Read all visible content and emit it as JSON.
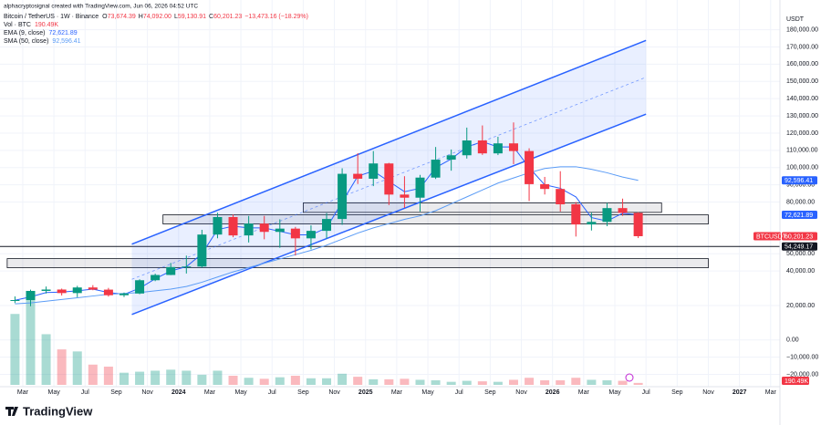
{
  "chart_data": {
    "type": "candlestick",
    "header": "alphacryptosignal created with TradingView.com, Jun 06, 2026 04:52 UTC",
    "symbol": "Bitcoin / TetherUS · 1W · Binance",
    "ohlc": [
      {
        "key": "O",
        "text": "73,674.39"
      },
      {
        "key": "H",
        "text": "74,092.00"
      },
      {
        "key": "L",
        "text": "59,130.91"
      },
      {
        "key": "C",
        "text": "60,201.23"
      }
    ],
    "change": "−13,473.16 (−18.29%)",
    "volume_legend": {
      "name": "Vol · BTC",
      "text": "190.49K"
    },
    "axis_unit": "USDT",
    "brand": "TradingView",
    "x": [
      "2023-02",
      "2023-03",
      "2023-04",
      "2023-05",
      "2023-06",
      "2023-07",
      "2023-08",
      "2023-09",
      "2023-10",
      "2023-11",
      "2023-12",
      "2024-01",
      "2024-02",
      "2024-03",
      "2024-04",
      "2024-05",
      "2024-06",
      "2024-07",
      "2024-08",
      "2024-09",
      "2024-10",
      "2024-11",
      "2024-12",
      "2025-01",
      "2025-02",
      "2025-03",
      "2025-04",
      "2025-05",
      "2025-06",
      "2025-07",
      "2025-08",
      "2025-09",
      "2025-10",
      "2025-11",
      "2025-12",
      "2026-01",
      "2026-02",
      "2026-03",
      "2026-04",
      "2026-05",
      "2026-06"
    ],
    "open": [
      23100,
      23150,
      28450,
      29250,
      27200,
      30450,
      29200,
      25950,
      26950,
      34650,
      37700,
      42300,
      42600,
      61150,
      71300,
      60650,
      67500,
      62700,
      64600,
      58950,
      63300,
      70200,
      96400,
      93550,
      102400,
      84350,
      82550,
      94200,
      104600,
      107150,
      115750,
      108250,
      114050,
      109600,
      90400,
      87600,
      78700,
      67000,
      68500,
      76500,
      73700
    ],
    "high": [
      25250,
      29200,
      31000,
      29800,
      31400,
      31800,
      30200,
      27500,
      35200,
      38450,
      44700,
      48950,
      63900,
      73800,
      72800,
      71950,
      71950,
      70000,
      65600,
      66500,
      73600,
      99600,
      108350,
      109600,
      102750,
      95000,
      95750,
      111950,
      110500,
      123200,
      124450,
      117900,
      126200,
      111200,
      94600,
      97900,
      80000,
      74000,
      79500,
      82000,
      74100
    ],
    "low": [
      21400,
      19550,
      26950,
      25800,
      24800,
      28850,
      25150,
      24900,
      26550,
      34100,
      37600,
      38550,
      41900,
      59000,
      59600,
      56550,
      58400,
      53500,
      49000,
      52550,
      58900,
      66800,
      90500,
      89250,
      78250,
      76600,
      74500,
      93400,
      98200,
      105250,
      107350,
      107250,
      102000,
      80600,
      84400,
      74500,
      60000,
      63500,
      66000,
      72000,
      59100
    ],
    "close": [
      23150,
      28450,
      29250,
      27200,
      30450,
      29200,
      25950,
      26950,
      34650,
      37700,
      42300,
      42600,
      61150,
      71300,
      60650,
      67500,
      62700,
      64600,
      58950,
      63300,
      70200,
      96400,
      93550,
      102400,
      84350,
      82550,
      94200,
      104600,
      107150,
      115750,
      108250,
      114050,
      109600,
      90400,
      87600,
      78700,
      67000,
      68500,
      76500,
      73700,
      60200
    ],
    "volume": [
      7000,
      9000,
      5000,
      3500,
      3300,
      2000,
      1800,
      1200,
      1300,
      1400,
      1500,
      1400,
      1000,
      1400,
      900,
      700,
      600,
      750,
      900,
      650,
      650,
      1100,
      800,
      550,
      550,
      600,
      500,
      450,
      300,
      400,
      350,
      300,
      500,
      700,
      450,
      450,
      700,
      500,
      450,
      400,
      190.49
    ],
    "up_color": "#089981",
    "down_color": "#f23645",
    "series": [
      {
        "name": "EMA (9, close)",
        "color": "#2962ff",
        "value_text": "72,621.89",
        "values": [
          23000,
          25000,
          27500,
          27800,
          28500,
          29500,
          27500,
          26500,
          30000,
          35500,
          40000,
          42500,
          50000,
          64000,
          66000,
          65000,
          65000,
          63000,
          61000,
          61000,
          65000,
          80000,
          95000,
          98000,
          92000,
          86000,
          88000,
          100000,
          105000,
          112000,
          115000,
          112000,
          112000,
          100000,
          90000,
          88000,
          83000,
          71000,
          69000,
          73500,
          72600
        ]
      },
      {
        "name": "SMA (50, close)",
        "color": "#5b9cf6",
        "value_text": "92,596.41",
        "values": [
          21000,
          21500,
          22500,
          23500,
          24500,
          25500,
          26500,
          27000,
          27500,
          28500,
          29500,
          31000,
          33500,
          36500,
          39500,
          42000,
          44500,
          47000,
          49500,
          52000,
          55000,
          58500,
          62000,
          65000,
          67500,
          70000,
          72000,
          75000,
          79000,
          83000,
          87000,
          91000,
          94000,
          97000,
          99500,
          100500,
          100500,
          99000,
          97000,
          94500,
          92600
        ]
      }
    ],
    "channel": {
      "color": "#2962ff",
      "lower": {
        "x": [
          "2023-10",
          "2026-07"
        ],
        "y": [
          14800,
          131000
        ]
      },
      "middle": {
        "x": [
          "2023-10",
          "2026-07"
        ],
        "y": [
          35200,
          152400
        ]
      },
      "upper": {
        "x": [
          "2023-10",
          "2026-07"
        ],
        "y": [
          55600,
          173800
        ]
      }
    },
    "zones": [
      {
        "x": [
          "2024-09",
          "2026-08"
        ],
        "y": [
          74000,
          79500
        ]
      },
      {
        "x": [
          "2023-12",
          "2026-11"
        ],
        "y": [
          67300,
          72600
        ]
      },
      {
        "x": [
          "2023-02",
          "2026-11"
        ],
        "y": [
          41900,
          47200
        ]
      }
    ],
    "level": 54249.17,
    "price_tags": [
      {
        "value": 92596.41,
        "label": "92,596.41",
        "color": "#2962ff"
      },
      {
        "value": 72621.89,
        "label": "72,621.89",
        "color": "#2962ff"
      },
      {
        "value": 60201.23,
        "label": "60,201.23",
        "color": "#f23645",
        "name": "BTCUSDT"
      },
      {
        "value": 54249.17,
        "label": "54,249.17",
        "color": "#131722"
      }
    ],
    "volume_tag": "190.49K",
    "ylim": [
      -25000,
      193000
    ],
    "yticks": [
      {
        "value": 180000,
        "label": "180,000.00"
      },
      {
        "value": 170000,
        "label": "170,000.00"
      },
      {
        "value": 160000,
        "label": "160,000.00"
      },
      {
        "value": 150000,
        "label": "150,000.00"
      },
      {
        "value": 140000,
        "label": "140,000.00"
      },
      {
        "value": 130000,
        "label": "130,000.00"
      },
      {
        "value": 120000,
        "label": "120,000.00"
      },
      {
        "value": 110000,
        "label": "110,000.00"
      },
      {
        "value": 100000,
        "label": "100,000.00"
      },
      {
        "value": 90000,
        "label": "90,000.00"
      },
      {
        "value": 80000,
        "label": "80,000.00"
      },
      {
        "value": 50000,
        "label": "50,000.00"
      },
      {
        "value": 40000,
        "label": "40,000.00"
      },
      {
        "value": 20000,
        "label": "20,000.00"
      },
      {
        "value": 0,
        "label": "0.00"
      },
      {
        "value": -10000,
        "label": "−10,000.00"
      },
      {
        "value": -20000,
        "label": "−20,000.00"
      }
    ],
    "xticks": [
      {
        "value": "2023-03",
        "label": "Mar"
      },
      {
        "value": "2023-05",
        "label": "May"
      },
      {
        "value": "2023-07",
        "label": "Jul"
      },
      {
        "value": "2023-09",
        "label": "Sep"
      },
      {
        "value": "2023-11",
        "label": "Nov"
      },
      {
        "value": "2024-01",
        "label": "2024"
      },
      {
        "value": "2024-03",
        "label": "Mar"
      },
      {
        "value": "2024-05",
        "label": "May"
      },
      {
        "value": "2024-07",
        "label": "Jul"
      },
      {
        "value": "2024-09",
        "label": "Sep"
      },
      {
        "value": "2024-11",
        "label": "Nov"
      },
      {
        "value": "2025-01",
        "label": "2025"
      },
      {
        "value": "2025-03",
        "label": "Mar"
      },
      {
        "value": "2025-05",
        "label": "May"
      },
      {
        "value": "2025-07",
        "label": "Jul"
      },
      {
        "value": "2025-09",
        "label": "Sep"
      },
      {
        "value": "2025-11",
        "label": "Nov"
      },
      {
        "value": "2026-01",
        "label": "2026"
      },
      {
        "value": "2026-03",
        "label": "Mar"
      },
      {
        "value": "2026-05",
        "label": "May"
      },
      {
        "value": "2026-07",
        "label": "Jul"
      },
      {
        "value": "2026-09",
        "label": "Sep"
      },
      {
        "value": "2026-11",
        "label": "Nov"
      },
      {
        "value": "2027-01",
        "label": "2027"
      },
      {
        "value": "2027-03",
        "label": "Mar"
      }
    ],
    "grid": true
  }
}
